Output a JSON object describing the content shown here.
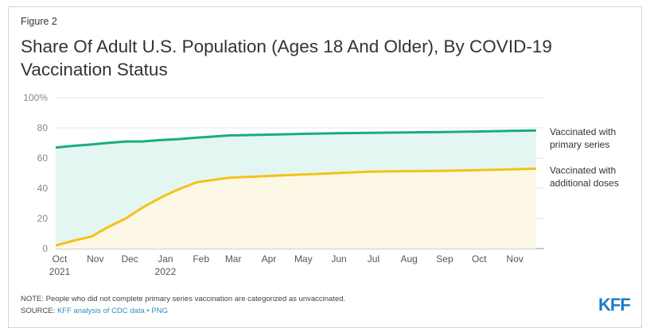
{
  "figure_label": "Figure 2",
  "title": "Share Of Adult U.S. Population (Ages 18 And Older), By COVID-19 Vaccination Status",
  "note": "NOTE: People who did not complete primary series vaccination are categorized as unvaccinated.",
  "source_prefix": "SOURCE: ",
  "source_link_text": "KFF analysis of CDC data",
  "source_separator": " • ",
  "source_png_text": "PNG",
  "logo_text": "KFF",
  "colors": {
    "primary_line": "#1aab84",
    "primary_fill": "#e4f6f1",
    "additional_line": "#f2c316",
    "additional_fill": "#fdf8e6",
    "grid": "#e6e6e6"
  },
  "chart_data": {
    "type": "area",
    "x_tick_labels": [
      {
        "month": "Oct",
        "year": "2021"
      },
      {
        "month": "Nov",
        "year": ""
      },
      {
        "month": "Dec",
        "year": ""
      },
      {
        "month": "Jan",
        "year": "2022"
      },
      {
        "month": "Feb",
        "year": ""
      },
      {
        "month": "Mar",
        "year": ""
      },
      {
        "month": "Apr",
        "year": ""
      },
      {
        "month": "May",
        "year": ""
      },
      {
        "month": "Jun",
        "year": ""
      },
      {
        "month": "Jul",
        "year": ""
      },
      {
        "month": "Aug",
        "year": ""
      },
      {
        "month": "Sep",
        "year": ""
      },
      {
        "month": "Oct",
        "year": ""
      },
      {
        "month": "Nov",
        "year": ""
      }
    ],
    "y_ticks": [
      "100%",
      "80",
      "60",
      "40",
      "20",
      "0"
    ],
    "ylim": [
      0,
      100
    ],
    "grid": true,
    "x": [
      "2021-10-01",
      "2021-10-15",
      "2021-11-01",
      "2021-11-15",
      "2021-12-01",
      "2021-12-15",
      "2022-01-01",
      "2022-01-15",
      "2022-02-01",
      "2022-03-01",
      "2022-04-01",
      "2022-05-01",
      "2022-06-01",
      "2022-07-01",
      "2022-08-01",
      "2022-09-01",
      "2022-10-01",
      "2022-11-01",
      "2022-11-23"
    ],
    "series": [
      {
        "name": "Vaccinated with primary series",
        "label_lines": [
          "Vaccinated with",
          "primary series"
        ],
        "values": [
          67,
          68,
          69,
          70,
          71,
          71,
          72,
          72.5,
          73.5,
          75,
          75.5,
          76,
          76.5,
          76.7,
          77,
          77.2,
          77.6,
          78,
          78.3
        ]
      },
      {
        "name": "Vaccinated with additional doses",
        "label_lines": [
          "Vaccinated with",
          "additional doses"
        ],
        "values": [
          2,
          5,
          8,
          14,
          20,
          27,
          34,
          39,
          44,
          47,
          48,
          49,
          50,
          51,
          51.3,
          51.5,
          52,
          52.5,
          53
        ]
      }
    ]
  }
}
